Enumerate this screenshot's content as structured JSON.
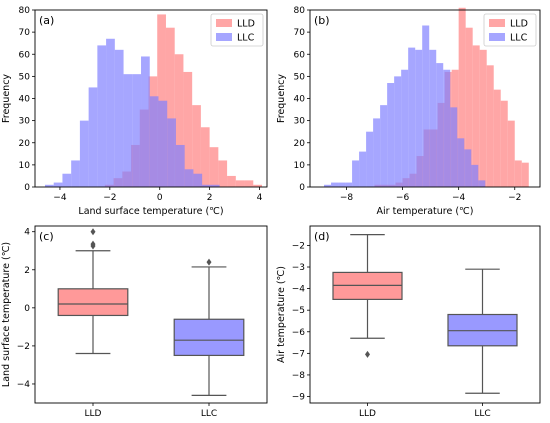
{
  "chart_data": [
    {
      "panel": "(a)",
      "type": "histogram",
      "xlabel": "Land surface temperature (℃)",
      "ylabel": "Frequency",
      "xlim": [
        -5,
        4.3
      ],
      "ylim": [
        0,
        80
      ],
      "xticks": [
        -4,
        -2,
        0,
        2,
        4
      ],
      "yticks": [
        0,
        10,
        20,
        30,
        40,
        50,
        60,
        70,
        80
      ],
      "legend_position": "top-right",
      "series": [
        {
          "name": "LLD",
          "color": "#ff8080",
          "bins": [
            -3.6,
            -3.25,
            -2.9,
            -2.55,
            -2.2,
            -1.85,
            -1.5,
            -1.15,
            -0.8,
            -0.45,
            -0.1,
            0.25,
            0.6,
            0.95,
            1.3,
            1.65,
            2.0,
            2.35,
            2.7,
            3.05,
            3.4,
            3.75,
            4.1
          ],
          "counts": [
            0,
            0,
            0,
            0,
            1,
            4,
            7,
            19,
            35,
            50,
            78,
            72,
            60,
            52,
            37,
            27,
            18,
            12,
            5,
            3,
            3,
            1
          ]
        },
        {
          "name": "LLC",
          "color": "#8080ff",
          "bins": [
            -4.6,
            -4.25,
            -3.9,
            -3.55,
            -3.2,
            -2.85,
            -2.5,
            -2.15,
            -1.8,
            -1.45,
            -1.1,
            -0.75,
            -0.4,
            -0.05,
            0.3,
            0.65,
            1.0,
            1.35,
            1.7,
            2.05,
            2.4
          ],
          "counts": [
            1,
            2,
            6,
            12,
            30,
            45,
            64,
            67,
            62,
            51,
            51,
            59,
            41,
            39,
            31,
            19,
            8,
            6,
            1,
            1
          ]
        }
      ]
    },
    {
      "panel": "(b)",
      "type": "histogram",
      "xlabel": "Air temperature (℃)",
      "ylabel": "Frequency",
      "xlim": [
        -9.3,
        -1.1
      ],
      "ylim": [
        0,
        80
      ],
      "xticks": [
        -8,
        -6,
        -4,
        -2
      ],
      "yticks": [
        0,
        10,
        20,
        30,
        40,
        50,
        60,
        70,
        80
      ],
      "legend_position": "top-right",
      "series": [
        {
          "name": "LLD",
          "color": "#ff8080",
          "bins": [
            -7.0,
            -6.75,
            -6.5,
            -6.25,
            -6.0,
            -5.75,
            -5.5,
            -5.25,
            -5.0,
            -4.75,
            -4.5,
            -4.25,
            -4.0,
            -3.75,
            -3.5,
            -3.25,
            -3.0,
            -2.75,
            -2.5,
            -2.25,
            -2.0,
            -1.75,
            -1.5
          ],
          "counts": [
            1,
            1,
            1,
            2,
            4,
            6,
            14,
            26,
            26,
            38,
            52,
            53,
            81,
            72,
            64,
            62,
            55,
            44,
            39,
            30,
            12,
            11
          ]
        },
        {
          "name": "LLC",
          "color": "#8080ff",
          "bins": [
            -8.8,
            -8.55,
            -8.3,
            -8.05,
            -7.8,
            -7.55,
            -7.3,
            -7.05,
            -6.8,
            -6.55,
            -6.3,
            -6.05,
            -5.8,
            -5.55,
            -5.3,
            -5.05,
            -4.8,
            -4.55,
            -4.3,
            -4.05,
            -3.8,
            -3.55,
            -3.3,
            -3.05
          ],
          "counts": [
            1,
            2,
            2,
            2,
            12,
            16,
            25,
            31,
            37,
            47,
            50,
            53,
            63,
            62,
            73,
            62,
            56,
            53,
            36,
            22,
            17,
            10,
            3,
            2
          ]
        }
      ]
    },
    {
      "panel": "(c)",
      "type": "box",
      "ylabel": "Land surface temperature (℃)",
      "ylim": [
        -5,
        4.3
      ],
      "yticks": [
        -4,
        -2,
        0,
        2,
        4
      ],
      "categories": [
        "LLD",
        "LLC"
      ],
      "boxes": [
        {
          "name": "LLD",
          "color": "#ff9999",
          "whislo": -2.4,
          "q1": -0.4,
          "med": 0.2,
          "q3": 1.0,
          "whishi": 3.0,
          "fliers": [
            3.25,
            3.35,
            4.0
          ]
        },
        {
          "name": "LLC",
          "color": "#9999ff",
          "whislo": -4.6,
          "q1": -2.5,
          "med": -1.7,
          "q3": -0.6,
          "whishi": 2.15,
          "fliers": [
            2.4
          ]
        }
      ]
    },
    {
      "panel": "(d)",
      "type": "box",
      "ylabel": "Air temperature (℃)",
      "ylim": [
        -9.3,
        -1.1
      ],
      "yticks": [
        -9,
        -8,
        -7,
        -6,
        -5,
        -4,
        -3,
        -2
      ],
      "categories": [
        "LLD",
        "LLC"
      ],
      "boxes": [
        {
          "name": "LLD",
          "color": "#ff9999",
          "whislo": -6.3,
          "q1": -4.5,
          "med": -3.85,
          "q3": -3.25,
          "whishi": -1.5,
          "fliers": [
            -7.05
          ]
        },
        {
          "name": "LLC",
          "color": "#9999ff",
          "whislo": -8.85,
          "q1": -6.65,
          "med": -5.95,
          "q3": -5.2,
          "whishi": -3.1,
          "fliers": []
        }
      ]
    }
  ]
}
